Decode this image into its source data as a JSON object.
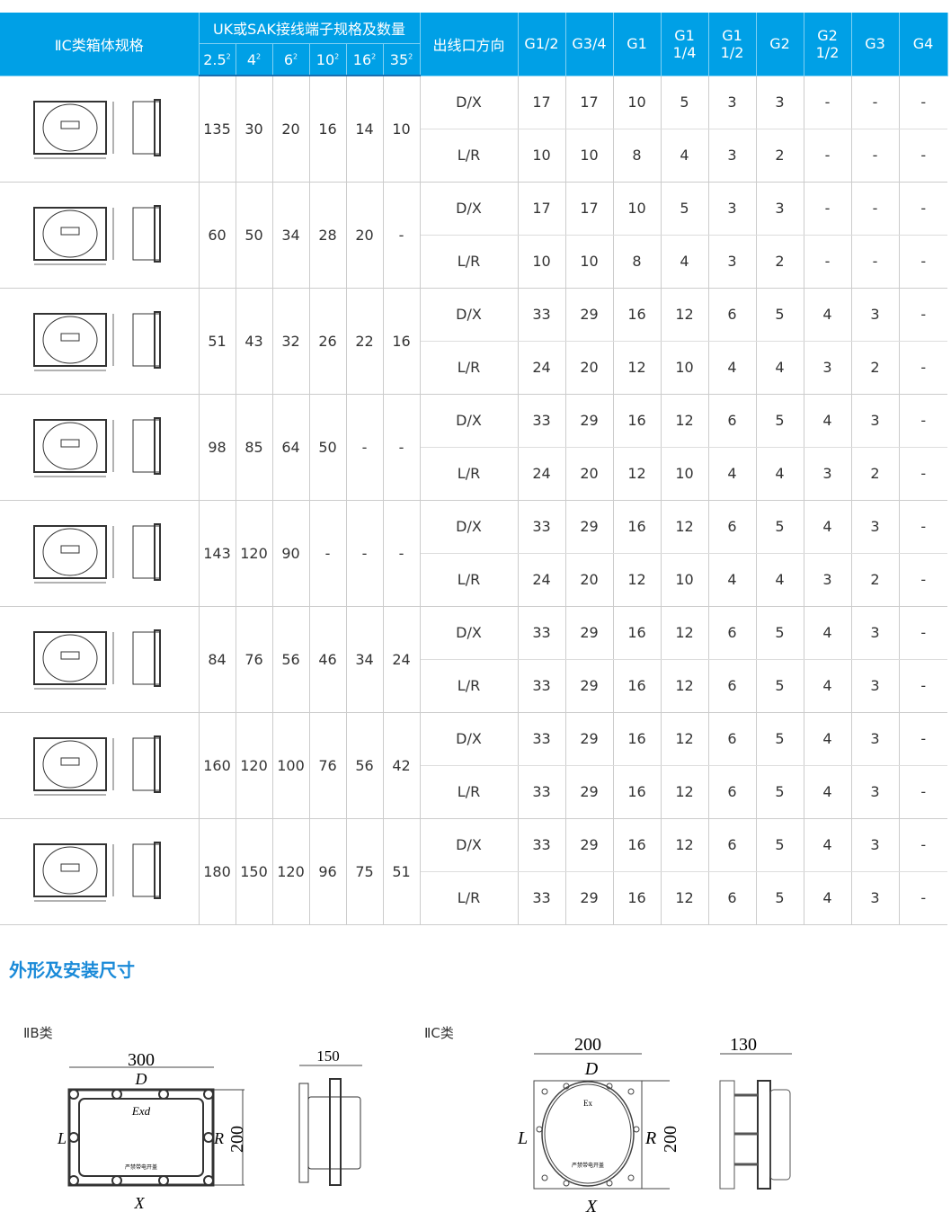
{
  "header": {
    "spec": "ⅡC类箱体规格",
    "terminals": "UK或SAK接线端子规格及数量",
    "sizes": [
      "2.5",
      "4",
      "6",
      "10",
      "16",
      "35"
    ],
    "direction": "出线口方向",
    "threads": [
      "G1/2",
      "G3/4",
      "G1",
      "G1 1/4",
      "G1 1/2",
      "G2",
      "G2 1/2",
      "G3",
      "G4"
    ]
  },
  "rows": [
    {
      "terminals": [
        "135",
        "30",
        "20",
        "16",
        "14",
        "10"
      ],
      "dx": [
        "17",
        "17",
        "10",
        "5",
        "3",
        "3",
        "-",
        "-",
        "-"
      ],
      "lr": [
        "10",
        "10",
        "8",
        "4",
        "3",
        "2",
        "-",
        "-",
        "-"
      ]
    },
    {
      "terminals": [
        "60",
        "50",
        "34",
        "28",
        "20",
        "-"
      ],
      "dx": [
        "17",
        "17",
        "10",
        "5",
        "3",
        "3",
        "-",
        "-",
        "-"
      ],
      "lr": [
        "10",
        "10",
        "8",
        "4",
        "3",
        "2",
        "-",
        "-",
        "-"
      ]
    },
    {
      "terminals": [
        "51",
        "43",
        "32",
        "26",
        "22",
        "16"
      ],
      "dx": [
        "33",
        "29",
        "16",
        "12",
        "6",
        "5",
        "4",
        "3",
        "-"
      ],
      "lr": [
        "24",
        "20",
        "12",
        "10",
        "4",
        "4",
        "3",
        "2",
        "-"
      ]
    },
    {
      "terminals": [
        "98",
        "85",
        "64",
        "50",
        "-",
        "-"
      ],
      "dx": [
        "33",
        "29",
        "16",
        "12",
        "6",
        "5",
        "4",
        "3",
        "-"
      ],
      "lr": [
        "24",
        "20",
        "12",
        "10",
        "4",
        "4",
        "3",
        "2",
        "-"
      ]
    },
    {
      "terminals": [
        "143",
        "120",
        "90",
        "-",
        "-",
        "-"
      ],
      "dx": [
        "33",
        "29",
        "16",
        "12",
        "6",
        "5",
        "4",
        "3",
        "-"
      ],
      "lr": [
        "24",
        "20",
        "12",
        "10",
        "4",
        "4",
        "3",
        "2",
        "-"
      ]
    },
    {
      "terminals": [
        "84",
        "76",
        "56",
        "46",
        "34",
        "24"
      ],
      "dx": [
        "33",
        "29",
        "16",
        "12",
        "6",
        "5",
        "4",
        "3",
        "-"
      ],
      "lr": [
        "33",
        "29",
        "16",
        "12",
        "6",
        "5",
        "4",
        "3",
        "-"
      ]
    },
    {
      "terminals": [
        "160",
        "120",
        "100",
        "76",
        "56",
        "42"
      ],
      "dx": [
        "33",
        "29",
        "16",
        "12",
        "6",
        "5",
        "4",
        "3",
        "-"
      ],
      "lr": [
        "33",
        "29",
        "16",
        "12",
        "6",
        "5",
        "4",
        "3",
        "-"
      ]
    },
    {
      "terminals": [
        "180",
        "150",
        "120",
        "96",
        "75",
        "51"
      ],
      "dx": [
        "33",
        "29",
        "16",
        "12",
        "6",
        "5",
        "4",
        "3",
        "-"
      ],
      "lr": [
        "33",
        "29",
        "16",
        "12",
        "6",
        "5",
        "4",
        "3",
        "-"
      ]
    }
  ],
  "dir_labels": {
    "dx": "D/X",
    "lr": "L/R"
  },
  "section_title": "外形及安装尺寸",
  "iib": {
    "label": "ⅡB类",
    "width": "300",
    "depth": "150",
    "height": "200",
    "top": "D",
    "bottom": "X",
    "left": "L",
    "right": "R",
    "mark": "Exd",
    "warning": "严禁带电开盖"
  },
  "iic": {
    "label": "ⅡC类",
    "width": "200",
    "depth": "130",
    "height": "200",
    "top": "D",
    "bottom": "X",
    "left": "L",
    "right": "R",
    "mark": "Ex",
    "warning": "严禁带电开盖"
  },
  "colors": {
    "header_bg": "#00a0e6",
    "title": "#1a8ad8"
  }
}
